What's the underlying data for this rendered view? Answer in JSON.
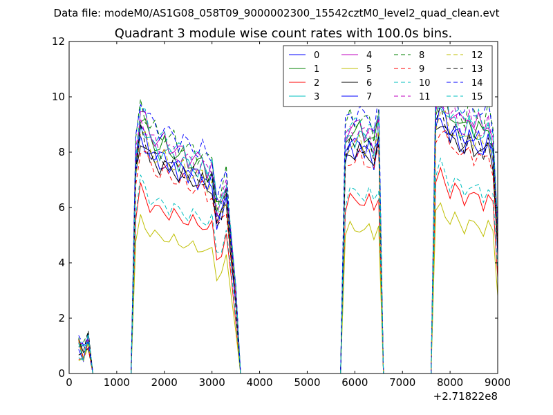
{
  "chart_data": {
    "type": "line",
    "suptitle": "Data file: modeM0/AS1G08_058T09_9000002300_15542cztM0_level2_quad_clean.evt",
    "title": "Quadrant 3 module wise count rates with 100.0s bins.",
    "xlabel": "",
    "ylabel": "",
    "x_offset_label": "+2.71822e8",
    "xlim": [
      0,
      9000
    ],
    "ylim": [
      0,
      12
    ],
    "xticks": [
      0,
      1000,
      2000,
      3000,
      4000,
      5000,
      6000,
      7000,
      8000,
      9000
    ],
    "yticks": [
      0,
      2,
      4,
      6,
      8,
      10,
      12
    ],
    "x_tick_labels": [
      "0",
      "1000",
      "2000",
      "3000",
      "4000",
      "5000",
      "6000",
      "7000",
      "8000",
      "9000"
    ],
    "y_tick_labels": [
      "0",
      "2",
      "4",
      "6",
      "8",
      "10",
      "12"
    ],
    "legend_position": "top-right",
    "grid": false,
    "series": [
      {
        "name": "0",
        "color": "#0000ff",
        "dash": "solid",
        "scale": 0.88
      },
      {
        "name": "1",
        "color": "#008000",
        "dash": "solid",
        "scale": 0.95
      },
      {
        "name": "2",
        "color": "#ff0000",
        "dash": "solid",
        "scale": 0.68
      },
      {
        "name": "3",
        "color": "#00bfbf",
        "dash": "solid",
        "scale": 0.93
      },
      {
        "name": "4",
        "color": "#bf00bf",
        "dash": "solid",
        "scale": 0.97
      },
      {
        "name": "5",
        "color": "#bfbf00",
        "dash": "solid",
        "scale": 0.57
      },
      {
        "name": "6",
        "color": "#000000",
        "dash": "solid",
        "scale": 0.87
      },
      {
        "name": "7",
        "color": "#0000ff",
        "dash": "solid",
        "scale": 0.9
      },
      {
        "name": "8",
        "color": "#008000",
        "dash": "dashed",
        "scale": 1.0
      },
      {
        "name": "9",
        "color": "#ff0000",
        "dash": "dashed",
        "scale": 0.84
      },
      {
        "name": "10",
        "color": "#00bfbf",
        "dash": "dashed",
        "scale": 0.71
      },
      {
        "name": "11",
        "color": "#bf00bf",
        "dash": "dashed",
        "scale": 0.95
      },
      {
        "name": "12",
        "color": "#bfbf00",
        "dash": "dashed",
        "scale": 0.9
      },
      {
        "name": "13",
        "color": "#000000",
        "dash": "dashed",
        "scale": 0.89
      },
      {
        "name": "14",
        "color": "#0000ff",
        "dash": "dashed",
        "scale": 1.02
      },
      {
        "name": "15",
        "color": "#00bfbf",
        "dash": "dashed",
        "scale": 0.98
      }
    ],
    "x": [
      200,
      300,
      400,
      500,
      600,
      700,
      800,
      900,
      1000,
      1100,
      1200,
      1300,
      1400,
      1500,
      1600,
      1700,
      1800,
      1900,
      2000,
      2100,
      2200,
      2300,
      2400,
      2500,
      2600,
      2700,
      2800,
      2900,
      3000,
      3100,
      3200,
      3300,
      3400,
      3500,
      3600,
      3700,
      3800,
      3900,
      4000,
      4100,
      4200,
      4300,
      4400,
      4500,
      4600,
      4700,
      4800,
      4900,
      5000,
      5100,
      5200,
      5300,
      5400,
      5500,
      5600,
      5700,
      5800,
      5900,
      6000,
      6100,
      6200,
      6300,
      6400,
      6500,
      6600,
      6700,
      6800,
      6900,
      7000,
      7100,
      7200,
      7300,
      7400,
      7500,
      7600,
      7700,
      7800,
      7900,
      8000,
      8100,
      8200,
      8300,
      8400,
      8500,
      8600,
      8700,
      8800,
      8900,
      9000
    ],
    "base_profile": [
      1.1,
      0.8,
      1.4,
      0,
      0,
      0,
      0,
      0,
      0,
      0,
      0,
      0,
      8.2,
      9.8,
      9.4,
      8.9,
      8.8,
      8.6,
      8.7,
      8.4,
      8.5,
      8.2,
      8.3,
      8.0,
      8.1,
      7.9,
      8.0,
      7.6,
      7.8,
      6.2,
      6.5,
      7.2,
      5.0,
      3.0,
      0,
      0,
      0,
      0,
      0,
      0,
      0,
      0,
      0,
      0,
      0,
      0,
      0,
      0,
      0,
      0,
      0,
      0,
      0,
      0,
      0,
      0,
      8.8,
      9.3,
      9.1,
      9.3,
      9.0,
      9.2,
      8.7,
      9.6,
      0,
      0,
      0,
      0,
      0,
      0,
      0,
      0,
      0,
      0,
      0,
      10.1,
      10.6,
      10.2,
      9.6,
      9.9,
      9.5,
      9.2,
      9.7,
      9.3,
      9.4,
      9.0,
      9.5,
      8.8,
      5.2
    ]
  }
}
